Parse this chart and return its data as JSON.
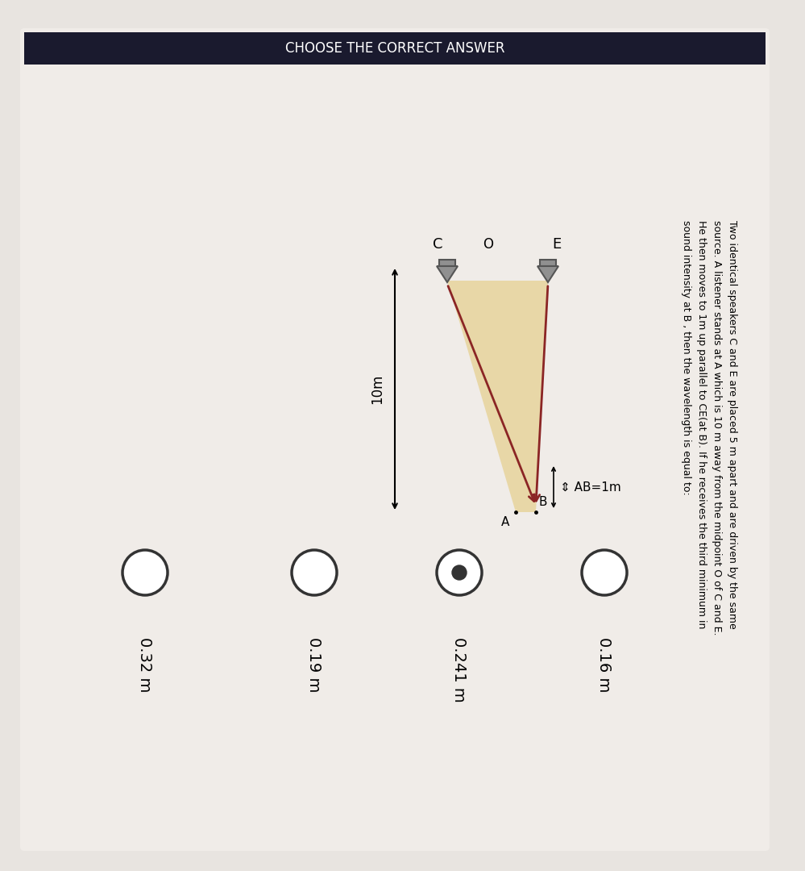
{
  "bg_color": "#e8e4e0",
  "paper_color": "#f0ece8",
  "problem_text_lines": [
    "Two identical speakers C and E are placed 5 m apart and are driven by the same",
    "source. A listener stands at A which is 10 m away from the midpoint O of C and E.",
    "He then moves to 1m up parallel to CE(at B). If he receives the third minimum in",
    "sound intensity at B , then the wavelength is equal to:"
  ],
  "options": [
    "0.16 m",
    "0.241 m",
    "0.19 m",
    "0.32 m"
  ],
  "correct_option": 1,
  "header_text": "CHOOSE THE CORRECT ANSWER",
  "diagram": {
    "E_label": "E",
    "C_label": "C",
    "O_label": "O",
    "A_label": "A",
    "B_label": "B",
    "distance_label": "10m",
    "AB_label": "⇕ AB=1m",
    "arrow_color": "#8B2525",
    "fill_color": "#e8d5a0",
    "speaker_color": "#888888"
  }
}
